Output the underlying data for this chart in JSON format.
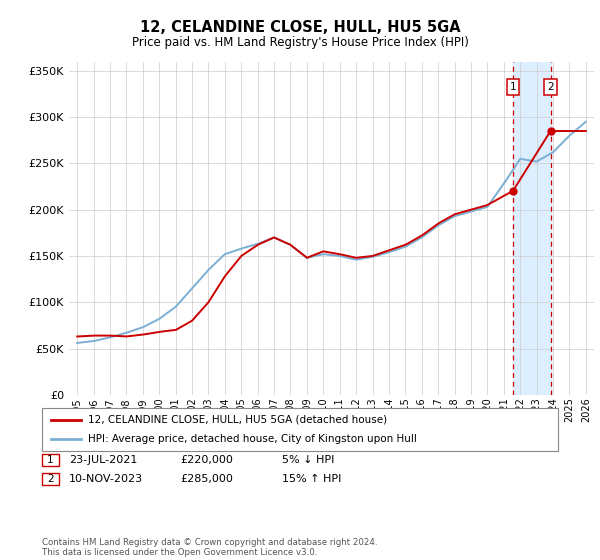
{
  "title": "12, CELANDINE CLOSE, HULL, HU5 5GA",
  "subtitle": "Price paid vs. HM Land Registry's House Price Index (HPI)",
  "legend_line1": "12, CELANDINE CLOSE, HULL, HU5 5GA (detached house)",
  "legend_line2": "HPI: Average price, detached house, City of Kingston upon Hull",
  "footnote": "Contains HM Land Registry data © Crown copyright and database right 2024.\nThis data is licensed under the Open Government Licence v3.0.",
  "transaction1": {
    "label": "1",
    "date": "23-JUL-2021",
    "price": "£220,000",
    "hpi": "5% ↓ HPI",
    "x": 2021.55
  },
  "transaction2": {
    "label": "2",
    "date": "10-NOV-2023",
    "price": "£285,000",
    "hpi": "15% ↑ HPI",
    "x": 2023.85
  },
  "hpi_color": "#7bafd4",
  "price_color": "#cc0000",
  "shaded_color": "#ddeeff",
  "grid_color": "#cccccc",
  "hpi_x": [
    1995,
    1996,
    1997,
    1998,
    1999,
    2000,
    2001,
    2002,
    2003,
    2004,
    2005,
    2006,
    2007,
    2008,
    2009,
    2010,
    2011,
    2012,
    2013,
    2014,
    2015,
    2016,
    2017,
    2018,
    2019,
    2020,
    2021,
    2022,
    2023,
    2024,
    2025,
    2026
  ],
  "hpi_y": [
    56000,
    58000,
    62000,
    67000,
    73000,
    82000,
    95000,
    115000,
    135000,
    152000,
    158000,
    163000,
    170000,
    162000,
    148000,
    152000,
    150000,
    146000,
    149000,
    154000,
    160000,
    170000,
    183000,
    193000,
    198000,
    203000,
    228000,
    255000,
    252000,
    262000,
    280000,
    295000
  ],
  "price_x": [
    1995,
    1996,
    1997,
    1998,
    1999,
    2000,
    2001,
    2002,
    2003,
    2004,
    2005,
    2006,
    2007,
    2008,
    2009,
    2010,
    2011,
    2012,
    2013,
    2014,
    2015,
    2016,
    2017,
    2018,
    2019,
    2020,
    2021.0,
    2021.55,
    2023.85,
    2024.5
  ],
  "price_y": [
    63000,
    64000,
    64000,
    63000,
    65000,
    68000,
    70000,
    80000,
    100000,
    128000,
    150000,
    162000,
    170000,
    162000,
    148000,
    155000,
    152000,
    148000,
    150000,
    156000,
    162000,
    172000,
    185000,
    195000,
    200000,
    205000,
    215000,
    220000,
    285000,
    285000
  ],
  "ylim": [
    0,
    360000
  ],
  "xlim": [
    1994.5,
    2026.5
  ],
  "yticks": [
    0,
    50000,
    100000,
    150000,
    200000,
    250000,
    300000,
    350000
  ],
  "xticks": [
    1995,
    1996,
    1997,
    1998,
    1999,
    2000,
    2001,
    2002,
    2003,
    2004,
    2005,
    2006,
    2007,
    2008,
    2009,
    2010,
    2011,
    2012,
    2013,
    2014,
    2015,
    2016,
    2017,
    2018,
    2019,
    2020,
    2021,
    2022,
    2023,
    2024,
    2025,
    2026
  ]
}
